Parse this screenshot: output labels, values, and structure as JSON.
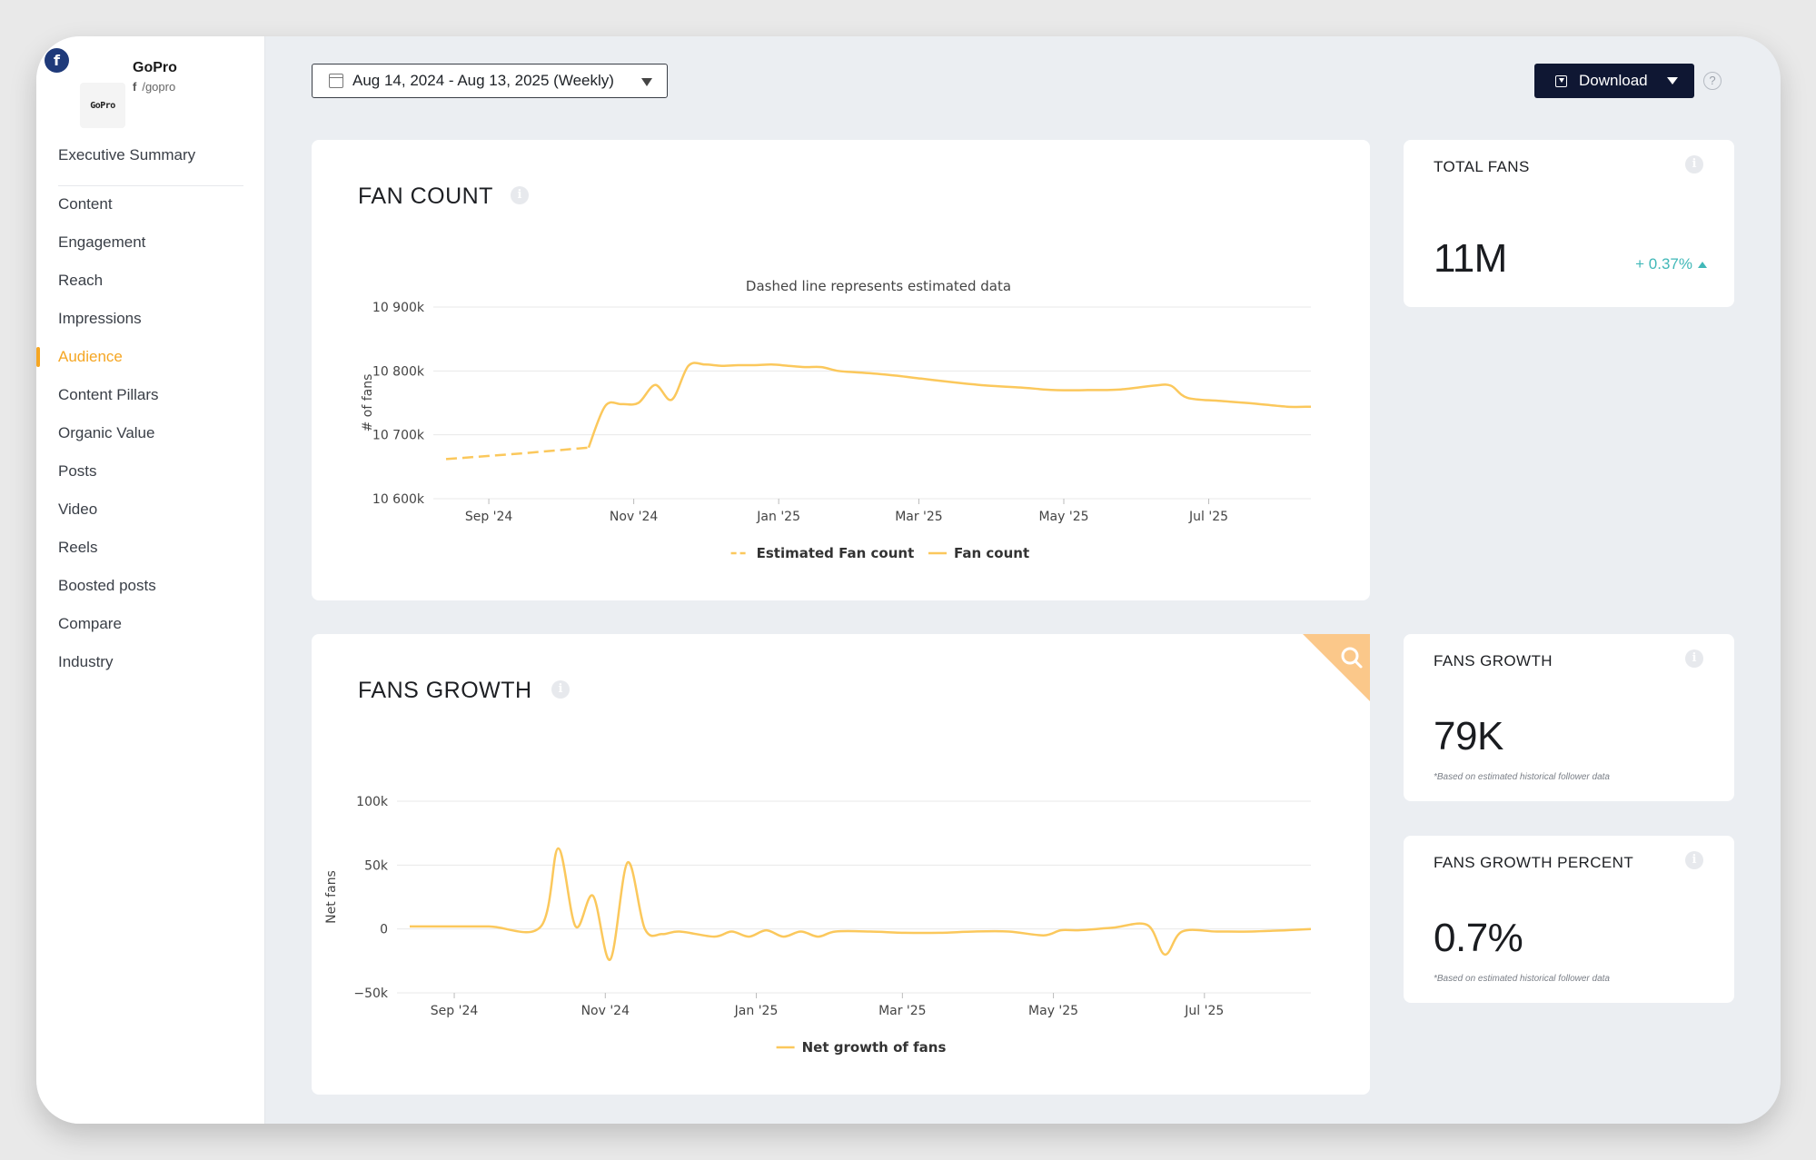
{
  "profile": {
    "name": "GoPro",
    "handle": "/gopro",
    "logo_text": "GoPro",
    "network_badge": "f"
  },
  "nav": {
    "items": [
      {
        "label": "Executive Summary"
      },
      {
        "label": "Content"
      },
      {
        "label": "Engagement"
      },
      {
        "label": "Reach"
      },
      {
        "label": "Impressions"
      },
      {
        "label": "Audience",
        "active": true
      },
      {
        "label": "Content Pillars"
      },
      {
        "label": "Organic Value"
      },
      {
        "label": "Posts"
      },
      {
        "label": "Video"
      },
      {
        "label": "Reels"
      },
      {
        "label": "Boosted posts"
      },
      {
        "label": "Compare"
      },
      {
        "label": "Industry"
      }
    ]
  },
  "toolbar": {
    "date_range": "Aug 14, 2024 - Aug 13, 2025 (Weekly)",
    "download_label": "Download",
    "help_label": "?"
  },
  "colors": {
    "accent": "#f5a623",
    "line": "#fbc85c",
    "positive": "#41b8b8",
    "button": "#0f1733"
  },
  "fan_count": {
    "title": "FAN COUNT",
    "note": "Dashed line represents estimated data",
    "ylabel": "# of fans",
    "y_ticks": [
      "10 900k",
      "10 800k",
      "10 700k",
      "10 600k"
    ],
    "x_ticks": [
      "Sep '24",
      "Nov '24",
      "Jan '25",
      "Mar '25",
      "May '25",
      "Jul '25"
    ],
    "legend": [
      "Estimated Fan count",
      "Fan count"
    ]
  },
  "fans_growth": {
    "title": "FANS GROWTH",
    "ylabel": "Net fans",
    "y_ticks": [
      "100k",
      "50k",
      "0",
      "−50k"
    ],
    "x_ticks": [
      "Sep '24",
      "Nov '24",
      "Jan '25",
      "Mar '25",
      "May '25",
      "Jul '25"
    ],
    "legend": [
      "Net growth of fans"
    ]
  },
  "kpis": {
    "total_fans": {
      "title": "TOTAL FANS",
      "value": "11M",
      "change": "+ 0.37%"
    },
    "fans_growth": {
      "title": "FANS GROWTH",
      "value": "79K",
      "note": "*Based on estimated historical follower data"
    },
    "fans_growth_percent": {
      "title": "FANS GROWTH PERCENT",
      "value": "0.7%",
      "note": "*Based on estimated historical follower data"
    }
  },
  "chart_data": [
    {
      "type": "line",
      "title": "FAN COUNT",
      "subtitle": "Dashed line represents estimated data",
      "ylabel": "# of fans",
      "ylim": [
        10600000,
        10900000
      ],
      "series": [
        {
          "name": "Estimated Fan count",
          "style": "dashed",
          "x": [
            "2024-08-14",
            "2024-09-01",
            "2024-09-15",
            "2024-10-01",
            "2024-10-13"
          ],
          "values": [
            10662000,
            10667000,
            10671000,
            10676000,
            10680000
          ]
        },
        {
          "name": "Fan count",
          "style": "solid",
          "x": [
            "2024-10-13",
            "2024-10-20",
            "2024-10-27",
            "2024-11-03",
            "2024-11-10",
            "2024-11-17",
            "2024-11-24",
            "2024-12-01",
            "2024-12-08",
            "2024-12-15",
            "2024-12-22",
            "2024-12-29",
            "2025-01-05",
            "2025-01-12",
            "2025-01-19",
            "2025-01-26",
            "2025-02-02",
            "2025-02-16",
            "2025-03-02",
            "2025-03-16",
            "2025-03-30",
            "2025-04-13",
            "2025-04-27",
            "2025-05-11",
            "2025-05-25",
            "2025-06-08",
            "2025-06-15",
            "2025-06-22",
            "2025-07-06",
            "2025-07-20",
            "2025-08-03",
            "2025-08-13"
          ],
          "values": [
            10680000,
            10745000,
            10748000,
            10750000,
            10778000,
            10755000,
            10808000,
            10810000,
            10808000,
            10809000,
            10809000,
            10810000,
            10808000,
            10806000,
            10806000,
            10800000,
            10798000,
            10794000,
            10788000,
            10782000,
            10777000,
            10774000,
            10770000,
            10770000,
            10771000,
            10777000,
            10777000,
            10758000,
            10753000,
            10749000,
            10744000,
            10744000
          ]
        }
      ]
    },
    {
      "type": "line",
      "title": "FANS GROWTH",
      "ylabel": "Net fans",
      "ylim": [
        -50000,
        100000
      ],
      "series": [
        {
          "name": "Net growth of fans",
          "x": [
            "2024-08-14",
            "2024-08-25",
            "2024-09-15",
            "2024-10-06",
            "2024-10-13",
            "2024-10-20",
            "2024-10-27",
            "2024-11-03",
            "2024-11-10",
            "2024-11-17",
            "2024-11-24",
            "2024-12-01",
            "2024-12-15",
            "2024-12-22",
            "2024-12-29",
            "2025-01-05",
            "2025-01-12",
            "2025-01-19",
            "2025-01-26",
            "2025-02-02",
            "2025-02-16",
            "2025-03-02",
            "2025-03-16",
            "2025-03-30",
            "2025-04-13",
            "2025-04-27",
            "2025-05-04",
            "2025-05-11",
            "2025-05-25",
            "2025-06-08",
            "2025-06-15",
            "2025-06-22",
            "2025-07-06",
            "2025-07-20",
            "2025-08-03",
            "2025-08-13"
          ],
          "values": [
            2000,
            2000,
            2000,
            2000,
            63000,
            2000,
            26000,
            -24000,
            52000,
            0,
            -4000,
            -2000,
            -6000,
            -2000,
            -6000,
            -1000,
            -6000,
            -2000,
            -6000,
            -2000,
            -2000,
            -3000,
            -3000,
            -2000,
            -2000,
            -5000,
            -1000,
            -1000,
            1000,
            3000,
            -20000,
            -2000,
            -2000,
            -2000,
            -1000,
            0
          ]
        }
      ]
    }
  ]
}
